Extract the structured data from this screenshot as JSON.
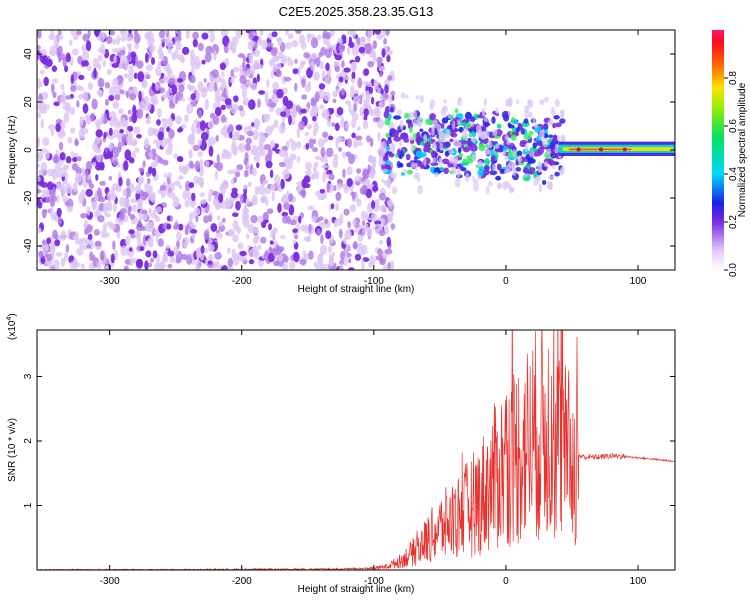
{
  "title": "C2E5.2025.358.23.35.G13",
  "colors": {
    "snr_line": "#e8322e",
    "spec_low": "#d8b8f0",
    "spec_mid": "#7a2be0",
    "spec_hi": "#e01010"
  },
  "chart_data": [
    {
      "type": "heatmap",
      "xlabel": "Height of straight line (km)",
      "ylabel": "Frequency (Hz)",
      "xlim": [
        -355,
        128
      ],
      "ylim": [
        -50,
        50
      ],
      "xticks": [
        -300,
        -200,
        -100,
        0,
        100
      ],
      "xtick_labels": [
        "-300",
        "-200",
        "-100",
        "0",
        "100"
      ],
      "yticks": [
        -40,
        -20,
        0,
        20,
        40
      ],
      "ytick_labels": [
        "-40",
        "-20",
        "0",
        "20",
        "40"
      ],
      "grid": false,
      "colorbar": {
        "label": "Normalized spectral amplitude",
        "range": [
          0,
          1
        ],
        "ticks": [
          0.0,
          0.2,
          0.4,
          0.6,
          0.8
        ],
        "tick_labels": [
          "0.0",
          "0.2",
          "0.4",
          "0.6",
          "0.8"
        ]
      }
    },
    {
      "type": "line",
      "xlabel": "Height of straight line (km)",
      "ylabel": "SNR (10 * v/v)",
      "y_multiplier": "(x10",
      "y_multiplier_exp": "4",
      "y_multiplier_close": ")",
      "xlim": [
        -355,
        128
      ],
      "ylim": [
        0,
        3.72
      ],
      "xticks": [
        -300,
        -200,
        -100,
        0,
        100
      ],
      "xtick_labels": [
        "-300",
        "-200",
        "-100",
        "0",
        "100"
      ],
      "yticks": [
        1,
        2,
        3
      ],
      "ytick_labels": [
        "1",
        "2",
        "3"
      ],
      "grid": false,
      "series": [
        {
          "x": [
            -355,
            -300,
            -250,
            -200,
            -150,
            -110,
            -100,
            -90,
            -80,
            -70,
            -60,
            -50,
            -40,
            -30,
            -20,
            -10,
            0,
            10,
            20,
            30,
            40,
            50,
            60,
            70,
            80,
            90,
            100,
            110,
            120,
            128
          ],
          "y": [
            0.0,
            0.0,
            0.0,
            0.01,
            0.01,
            0.02,
            0.03,
            0.06,
            0.15,
            0.3,
            0.5,
            0.7,
            0.85,
            1.0,
            1.2,
            1.5,
            1.8,
            2.0,
            2.2,
            2.4,
            2.1,
            1.8,
            1.75,
            1.75,
            1.77,
            1.76,
            1.74,
            1.72,
            1.7,
            1.68
          ]
        }
      ]
    }
  ]
}
